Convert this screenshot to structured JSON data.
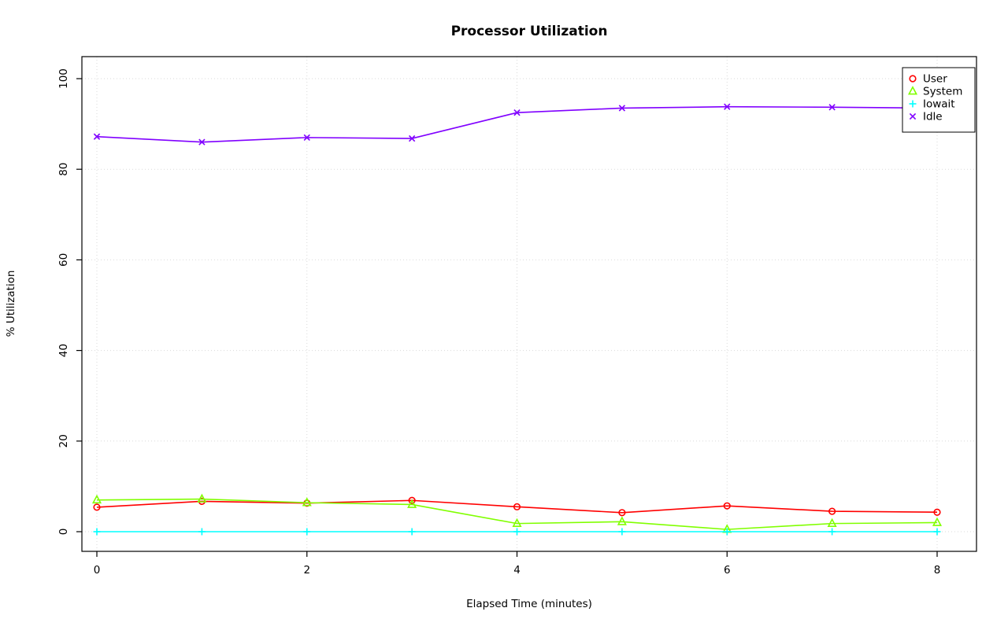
{
  "chart_data": {
    "type": "line",
    "title": "Processor Utilization",
    "xlabel": "Elapsed Time (minutes)",
    "ylabel": "% Utilization",
    "x": [
      0,
      1,
      2,
      3,
      4,
      5,
      6,
      7,
      8
    ],
    "xticks": [
      0,
      2,
      4,
      6,
      8
    ],
    "yticks": [
      0,
      20,
      40,
      60,
      80,
      100
    ],
    "xlim": [
      0,
      8
    ],
    "ylim": [
      0,
      100
    ],
    "grid": "dotted",
    "grid_color": "#D9D9D9",
    "legend_position": "top-right",
    "series": [
      {
        "name": "User",
        "color": "#FF0000",
        "marker": "circle",
        "values": [
          5.4,
          6.7,
          6.3,
          6.9,
          5.5,
          4.2,
          5.7,
          4.5,
          4.3
        ]
      },
      {
        "name": "System",
        "color": "#80FF00",
        "marker": "triangle",
        "values": [
          7.0,
          7.2,
          6.4,
          6.0,
          1.8,
          2.2,
          0.5,
          1.8,
          2.0
        ]
      },
      {
        "name": "Iowait",
        "color": "#00FFFF",
        "marker": "plus",
        "values": [
          0,
          0,
          0,
          0,
          0,
          0,
          0,
          0,
          0
        ]
      },
      {
        "name": "Idle",
        "color": "#8000FF",
        "marker": "x",
        "values": [
          87.2,
          86.0,
          87.0,
          86.8,
          92.5,
          93.5,
          93.8,
          93.7,
          93.5
        ]
      }
    ]
  }
}
